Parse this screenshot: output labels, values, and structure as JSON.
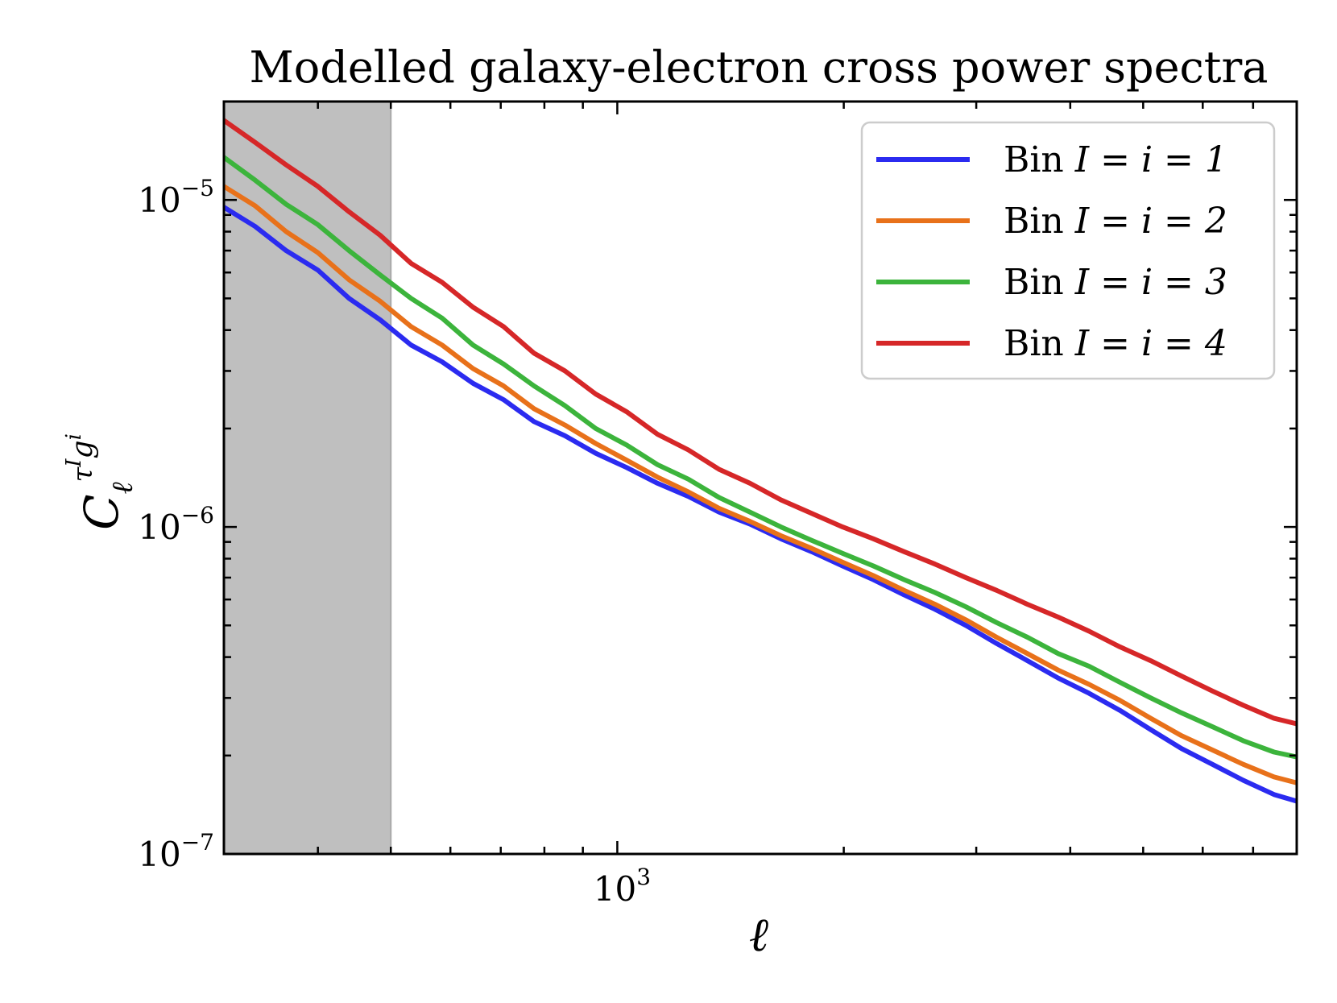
{
  "chart_data": {
    "type": "line",
    "title": "Modelled galaxy-electron cross power spectra",
    "xlabel": "ℓ",
    "ylabel": "C_ℓ^{τ^I g^i}",
    "xscale": "log",
    "yscale": "log",
    "xlim": [
      300,
      8000
    ],
    "ylim": [
      1e-07,
      2e-05
    ],
    "x_ticks": [
      {
        "value": 1000,
        "base": "10",
        "exp": "3"
      }
    ],
    "y_ticks": [
      {
        "value": 1e-07,
        "base": "10",
        "exp": "−7"
      },
      {
        "value": 1e-06,
        "base": "10",
        "exp": "−6"
      },
      {
        "value": 1e-05,
        "base": "10",
        "exp": "−5"
      }
    ],
    "shaded_region": {
      "x_start": 300,
      "x_end": 500,
      "color": "#bfbfbf"
    },
    "legend_position": "top-right",
    "x": [
      300,
      330,
      363,
      400,
      440,
      484,
      532,
      585,
      643,
      706,
      775,
      852,
      936,
      1029,
      1131,
      1243,
      1366,
      1501,
      1650,
      1813,
      1993,
      2190,
      2406,
      2644,
      2906,
      3193,
      3509,
      3856,
      4237,
      4656,
      5117,
      5623,
      6179,
      6790,
      7462,
      8000
    ],
    "series": [
      {
        "name": "Bin",
        "math": "I = i = 1",
        "color": "#2b2bf0",
        "values": [
          9.5e-06,
          8.3e-06,
          7e-06,
          6.1e-06,
          5e-06,
          4.3e-06,
          3.6e-06,
          3.2e-06,
          2.75e-06,
          2.45e-06,
          2.1e-06,
          1.9e-06,
          1.68e-06,
          1.52e-06,
          1.36e-06,
          1.24e-06,
          1.11e-06,
          1.02e-06,
          9.2e-07,
          8.4e-07,
          7.6e-07,
          6.9e-07,
          6.2e-07,
          5.6e-07,
          5e-07,
          4.4e-07,
          3.9e-07,
          3.45e-07,
          3.1e-07,
          2.75e-07,
          2.4e-07,
          2.1e-07,
          1.88e-07,
          1.68e-07,
          1.52e-07,
          1.45e-07
        ]
      },
      {
        "name": "Bin",
        "math": "I = i = 2",
        "color": "#e8711a",
        "values": [
          1.1e-05,
          9.6e-06,
          8e-06,
          6.9e-06,
          5.7e-06,
          4.9e-06,
          4.1e-06,
          3.6e-06,
          3.05e-06,
          2.7e-06,
          2.3e-06,
          2.05e-06,
          1.8e-06,
          1.6e-06,
          1.42e-06,
          1.28e-06,
          1.14e-06,
          1.04e-06,
          9.4e-07,
          8.6e-07,
          7.8e-07,
          7.1e-07,
          6.4e-07,
          5.8e-07,
          5.2e-07,
          4.6e-07,
          4.1e-07,
          3.65e-07,
          3.3e-07,
          2.95e-07,
          2.6e-07,
          2.3e-07,
          2.08e-07,
          1.88e-07,
          1.72e-07,
          1.65e-07
        ]
      },
      {
        "name": "Bin",
        "math": "I = i = 3",
        "color": "#3cb43c",
        "values": [
          1.35e-05,
          1.15e-05,
          9.7e-06,
          8.4e-06,
          7e-06,
          5.9e-06,
          5e-06,
          4.35e-06,
          3.6e-06,
          3.15e-06,
          2.7e-06,
          2.35e-06,
          2e-06,
          1.78e-06,
          1.55e-06,
          1.4e-06,
          1.23e-06,
          1.11e-06,
          1e-06,
          9.1e-07,
          8.3e-07,
          7.6e-07,
          6.9e-07,
          6.3e-07,
          5.7e-07,
          5.1e-07,
          4.6e-07,
          4.1e-07,
          3.75e-07,
          3.35e-07,
          3e-07,
          2.7e-07,
          2.45e-07,
          2.22e-07,
          2.05e-07,
          1.98e-07
        ]
      },
      {
        "name": "Bin",
        "math": "I = i = 4",
        "color": "#d62728",
        "values": [
          1.75e-05,
          1.5e-05,
          1.28e-05,
          1.1e-05,
          9.2e-06,
          7.8e-06,
          6.4e-06,
          5.6e-06,
          4.7e-06,
          4.1e-06,
          3.4e-06,
          3e-06,
          2.55e-06,
          2.25e-06,
          1.92e-06,
          1.72e-06,
          1.5e-06,
          1.36e-06,
          1.21e-06,
          1.1e-06,
          1e-06,
          9.2e-07,
          8.4e-07,
          7.7e-07,
          7e-07,
          6.4e-07,
          5.8e-07,
          5.3e-07,
          4.8e-07,
          4.3e-07,
          3.9e-07,
          3.5e-07,
          3.15e-07,
          2.85e-07,
          2.6e-07,
          2.5e-07
        ]
      }
    ]
  }
}
